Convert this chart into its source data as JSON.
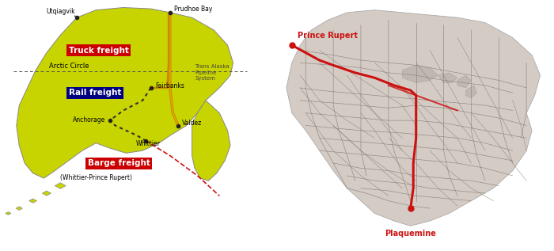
{
  "fig_width": 7.0,
  "fig_height": 3.17,
  "dpi": 100,
  "bg_color": "#ffffff",
  "left_panel_bg": "#d8ddb0",
  "right_panel_bg": "#c0b8b0",
  "alaska_fill": "#c8d400",
  "alaska_edge": "#888888",
  "land_fill": "#d4ccc4",
  "land_edge": "#aaaaaa",
  "rail_gray": "#807870",
  "route_orange": "#d4960a",
  "route_dark": "#222222",
  "route_red": "#cc1111",
  "text_red": "#cc1111",
  "truck_box_color": "#cc0000",
  "rail_box_color": "#000080",
  "barge_box_color": "#cc0000",
  "labels": {
    "utqiagvik": "Utqiagvik",
    "prudhoe": "Prudhoe Bay",
    "arctic_circle": "Arctic Circle",
    "trans_alaska": "Trans Alaska\nPipeline\nSystem",
    "fairbanks": "Fairbanks",
    "anchorage": "Anchorage",
    "valdez": "Valdez",
    "whittier": "Whittier",
    "truck_freight": "Truck freight",
    "rail_freight": "Rail freight",
    "barge_freight": "Barge freight",
    "barge_subtitle": "(Whittier-Prince Rupert)",
    "prince_rupert": "Prince Rupert",
    "plaquemine": "Plaquemine"
  }
}
